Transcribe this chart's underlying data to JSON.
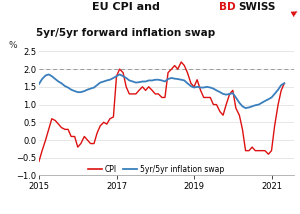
{
  "title_line1": "EU CPI and",
  "title_line2": "5yr/5yr forward inflation swap",
  "ylabel": "%",
  "ylim": [
    -1.0,
    2.5
  ],
  "yticks": [
    -1.0,
    -0.5,
    0.0,
    0.5,
    1.0,
    1.5,
    2.0,
    2.5
  ],
  "xlim_start": 2015.0,
  "xlim_end": 2021.58,
  "hline_y": 2.0,
  "bg_color": "#ffffff",
  "cpi_color": "#dd1111",
  "swap_color": "#3a7fbd",
  "legend_cpi": "CPI",
  "legend_swap": "5yr/5yr inflation swap",
  "cpi_x": [
    2015.0,
    2015.08,
    2015.17,
    2015.25,
    2015.33,
    2015.42,
    2015.5,
    2015.58,
    2015.67,
    2015.75,
    2015.83,
    2015.92,
    2016.0,
    2016.08,
    2016.17,
    2016.25,
    2016.33,
    2016.42,
    2016.5,
    2016.58,
    2016.67,
    2016.75,
    2016.83,
    2016.92,
    2017.0,
    2017.08,
    2017.17,
    2017.25,
    2017.33,
    2017.42,
    2017.5,
    2017.58,
    2017.67,
    2017.75,
    2017.83,
    2017.92,
    2018.0,
    2018.08,
    2018.17,
    2018.25,
    2018.33,
    2018.42,
    2018.5,
    2018.58,
    2018.67,
    2018.75,
    2018.83,
    2018.92,
    2019.0,
    2019.08,
    2019.17,
    2019.25,
    2019.33,
    2019.42,
    2019.5,
    2019.58,
    2019.67,
    2019.75,
    2019.83,
    2019.92,
    2020.0,
    2020.08,
    2020.17,
    2020.25,
    2020.33,
    2020.42,
    2020.5,
    2020.58,
    2020.67,
    2020.75,
    2020.83,
    2020.92,
    2021.0,
    2021.08,
    2021.17,
    2021.25,
    2021.33
  ],
  "cpi_y": [
    -0.6,
    -0.3,
    0.0,
    0.3,
    0.6,
    0.55,
    0.45,
    0.35,
    0.3,
    0.3,
    0.1,
    0.1,
    -0.2,
    -0.1,
    0.1,
    0.0,
    -0.1,
    -0.1,
    0.2,
    0.4,
    0.5,
    0.45,
    0.6,
    0.65,
    1.8,
    2.0,
    1.9,
    1.5,
    1.3,
    1.3,
    1.3,
    1.4,
    1.5,
    1.4,
    1.5,
    1.4,
    1.3,
    1.3,
    1.2,
    1.2,
    1.9,
    2.0,
    2.1,
    2.0,
    2.2,
    2.1,
    1.9,
    1.6,
    1.5,
    1.7,
    1.4,
    1.2,
    1.2,
    1.2,
    1.0,
    1.0,
    0.8,
    0.7,
    1.0,
    1.3,
    1.4,
    0.9,
    0.7,
    0.3,
    -0.3,
    -0.3,
    -0.2,
    -0.3,
    -0.3,
    -0.3,
    -0.3,
    -0.4,
    -0.3,
    0.4,
    1.0,
    1.4,
    1.6
  ],
  "swap_x": [
    2015.0,
    2015.08,
    2015.17,
    2015.25,
    2015.33,
    2015.42,
    2015.5,
    2015.58,
    2015.67,
    2015.75,
    2015.83,
    2015.92,
    2016.0,
    2016.08,
    2016.17,
    2016.25,
    2016.33,
    2016.42,
    2016.5,
    2016.58,
    2016.67,
    2016.75,
    2016.83,
    2016.92,
    2017.0,
    2017.08,
    2017.17,
    2017.25,
    2017.33,
    2017.42,
    2017.5,
    2017.58,
    2017.67,
    2017.75,
    2017.83,
    2017.92,
    2018.0,
    2018.08,
    2018.17,
    2018.25,
    2018.33,
    2018.42,
    2018.5,
    2018.58,
    2018.67,
    2018.75,
    2018.83,
    2018.92,
    2019.0,
    2019.08,
    2019.17,
    2019.25,
    2019.33,
    2019.42,
    2019.5,
    2019.58,
    2019.67,
    2019.75,
    2019.83,
    2019.92,
    2020.0,
    2020.08,
    2020.17,
    2020.25,
    2020.33,
    2020.42,
    2020.5,
    2020.58,
    2020.67,
    2020.75,
    2020.83,
    2020.92,
    2021.0,
    2021.08,
    2021.17,
    2021.25,
    2021.33
  ],
  "swap_y": [
    1.58,
    1.72,
    1.82,
    1.85,
    1.8,
    1.72,
    1.65,
    1.6,
    1.52,
    1.48,
    1.42,
    1.38,
    1.35,
    1.35,
    1.38,
    1.42,
    1.45,
    1.48,
    1.55,
    1.62,
    1.65,
    1.68,
    1.7,
    1.75,
    1.8,
    1.85,
    1.8,
    1.75,
    1.68,
    1.65,
    1.62,
    1.63,
    1.65,
    1.65,
    1.68,
    1.68,
    1.7,
    1.7,
    1.68,
    1.65,
    1.72,
    1.75,
    1.73,
    1.72,
    1.7,
    1.68,
    1.6,
    1.52,
    1.48,
    1.5,
    1.48,
    1.48,
    1.5,
    1.48,
    1.45,
    1.4,
    1.35,
    1.3,
    1.28,
    1.3,
    1.32,
    1.2,
    1.05,
    0.95,
    0.9,
    0.92,
    0.95,
    0.98,
    1.0,
    1.05,
    1.1,
    1.15,
    1.2,
    1.3,
    1.42,
    1.55,
    1.6
  ],
  "xtick_positions": [
    2015,
    2017,
    2019,
    2021
  ],
  "xtick_labels": [
    "2015",
    "2017",
    "2019",
    "2021"
  ]
}
